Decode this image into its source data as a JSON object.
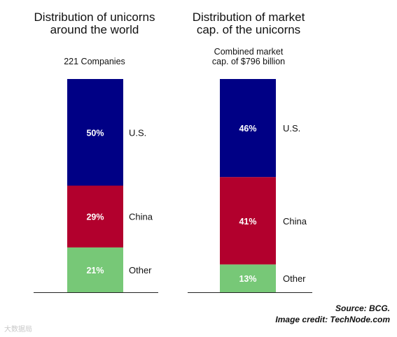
{
  "chart_data": [
    {
      "type": "bar",
      "stacked": true,
      "title": [
        "Distribution of unicorns",
        "around the world"
      ],
      "subtitle": [
        "221 Companies"
      ],
      "categories": [
        "U.S.",
        "China",
        "Other"
      ],
      "values": [
        50,
        29,
        21
      ],
      "value_labels": [
        "50%",
        "29%",
        "21%"
      ],
      "unit": "%",
      "ylim": [
        0,
        100
      ]
    },
    {
      "type": "bar",
      "stacked": true,
      "title": [
        "Distribution of market",
        "cap. of the unicorns"
      ],
      "subtitle": [
        "Combined market",
        "cap. of $796 billion"
      ],
      "categories": [
        "U.S.",
        "China",
        "Other"
      ],
      "values": [
        46,
        41,
        13
      ],
      "value_labels": [
        "46%",
        "41%",
        "13%"
      ],
      "unit": "%",
      "ylim": [
        0,
        100
      ]
    }
  ],
  "colors": {
    "U.S.": "#000085",
    "China": "#b2002d",
    "Other": "#77c877"
  },
  "source_lines": [
    "Source: BCG.",
    "Image credit: TechNode.com"
  ],
  "watermark": "大数据局"
}
